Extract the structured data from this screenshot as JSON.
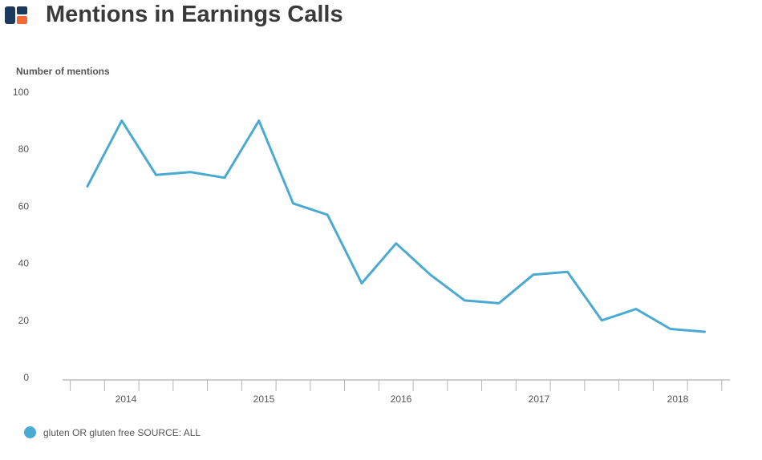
{
  "title": "Mentions in Earnings Calls",
  "colors": {
    "series": "#4aaad1",
    "logo_dark": "#1b3a5c",
    "logo_accent": "#f06a35",
    "axis": "#999999"
  },
  "chart_data": {
    "type": "line",
    "title": "Mentions in Earnings Calls",
    "ylabel": "Number of mentions",
    "xlabel": "",
    "ylim": [
      0,
      100
    ],
    "yticks": [
      "0",
      "20",
      "40",
      "60",
      "80",
      "100"
    ],
    "xtick_labels": [
      "2014",
      "2015",
      "2016",
      "2017",
      "2018"
    ],
    "grid": false,
    "legend_position": "bottom-left",
    "series": [
      {
        "name": "gluten OR gluten free SOURCE: ALL",
        "x": [
          "2013 Q3",
          "2013 Q4",
          "2014 Q1",
          "2014 Q2",
          "2014 Q3",
          "2014 Q4",
          "2015 Q1",
          "2015 Q2",
          "2015 Q3",
          "2015 Q4",
          "2016 Q1",
          "2016 Q2",
          "2016 Q3",
          "2016 Q4",
          "2017 Q1",
          "2017 Q2",
          "2017 Q3",
          "2017 Q4",
          "2018 Q1"
        ],
        "values": [
          67,
          90,
          71,
          72,
          70,
          90,
          61,
          57,
          33,
          47,
          36,
          27,
          26,
          36,
          37,
          20,
          24,
          17,
          16
        ]
      }
    ]
  }
}
